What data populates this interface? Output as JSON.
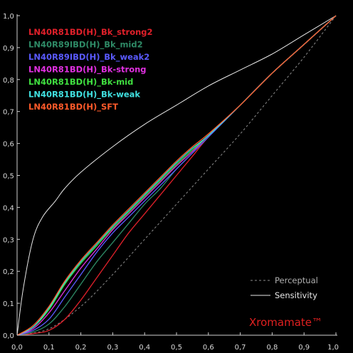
{
  "chart_data": {
    "type": "line",
    "title": "",
    "xlabel": "",
    "ylabel": "",
    "xlim": [
      0,
      1
    ],
    "ylim": [
      0,
      1
    ],
    "grid": false,
    "legend_position": "top-left",
    "x_ticks": [
      "0,0",
      "0,1",
      "0,2",
      "0,3",
      "0,4",
      "0,5",
      "0,6",
      "0,7",
      "0,8",
      "0,9",
      "1,0"
    ],
    "y_ticks": [
      "0,0",
      "0,1",
      "0,2",
      "0,3",
      "0,4",
      "0,5",
      "0,6",
      "0,7",
      "0,8",
      "0,9",
      "1,0"
    ],
    "series": [
      {
        "name": "LN40R81BD(H)_Bk_strong2",
        "color": "#e0202a",
        "points": [
          [
            0,
            0
          ],
          [
            0.05,
            0.005
          ],
          [
            0.1,
            0.015
          ],
          [
            0.15,
            0.05
          ],
          [
            0.2,
            0.11
          ],
          [
            0.25,
            0.18
          ],
          [
            0.3,
            0.25
          ],
          [
            0.35,
            0.32
          ],
          [
            0.4,
            0.38
          ],
          [
            0.45,
            0.44
          ],
          [
            0.5,
            0.5
          ],
          [
            0.55,
            0.56
          ],
          [
            0.6,
            0.62
          ],
          [
            0.7,
            0.72
          ],
          [
            0.8,
            0.82
          ],
          [
            0.9,
            0.91
          ],
          [
            1,
            1
          ]
        ]
      },
      {
        "name": "LN40R89IBD(H)_Bk_mid2",
        "color": "#2e8a66",
        "points": [
          [
            0,
            0
          ],
          [
            0.05,
            0.01
          ],
          [
            0.1,
            0.035
          ],
          [
            0.15,
            0.09
          ],
          [
            0.2,
            0.16
          ],
          [
            0.25,
            0.23
          ],
          [
            0.3,
            0.29
          ],
          [
            0.35,
            0.35
          ],
          [
            0.4,
            0.41
          ],
          [
            0.45,
            0.46
          ],
          [
            0.5,
            0.52
          ],
          [
            0.55,
            0.57
          ],
          [
            0.6,
            0.62
          ],
          [
            0.7,
            0.72
          ],
          [
            0.8,
            0.82
          ],
          [
            0.9,
            0.91
          ],
          [
            1,
            1
          ]
        ]
      },
      {
        "name": "LN40R89IBD(H)_Bk_weak2",
        "color": "#5a5aff",
        "points": [
          [
            0,
            0
          ],
          [
            0.05,
            0.015
          ],
          [
            0.1,
            0.05
          ],
          [
            0.15,
            0.12
          ],
          [
            0.2,
            0.19
          ],
          [
            0.25,
            0.26
          ],
          [
            0.3,
            0.32
          ],
          [
            0.35,
            0.37
          ],
          [
            0.4,
            0.42
          ],
          [
            0.45,
            0.47
          ],
          [
            0.5,
            0.52
          ],
          [
            0.55,
            0.57
          ],
          [
            0.6,
            0.62
          ],
          [
            0.7,
            0.72
          ],
          [
            0.8,
            0.82
          ],
          [
            0.9,
            0.91
          ],
          [
            1,
            1
          ]
        ]
      },
      {
        "name": "LN40R81BD(H)_Bk-strong",
        "color": "#e030e0",
        "points": [
          [
            0,
            0
          ],
          [
            0.05,
            0.02
          ],
          [
            0.1,
            0.07
          ],
          [
            0.15,
            0.14
          ],
          [
            0.2,
            0.21
          ],
          [
            0.25,
            0.27
          ],
          [
            0.3,
            0.33
          ],
          [
            0.35,
            0.38
          ],
          [
            0.4,
            0.43
          ],
          [
            0.45,
            0.48
          ],
          [
            0.5,
            0.53
          ],
          [
            0.55,
            0.575
          ],
          [
            0.6,
            0.625
          ],
          [
            0.7,
            0.72
          ],
          [
            0.8,
            0.82
          ],
          [
            0.9,
            0.91
          ],
          [
            1,
            1
          ]
        ]
      },
      {
        "name": "LN40R81BD(H)_Bk-mid",
        "color": "#40e040",
        "points": [
          [
            0,
            0
          ],
          [
            0.05,
            0.025
          ],
          [
            0.1,
            0.08
          ],
          [
            0.15,
            0.16
          ],
          [
            0.2,
            0.225
          ],
          [
            0.25,
            0.28
          ],
          [
            0.3,
            0.335
          ],
          [
            0.35,
            0.385
          ],
          [
            0.4,
            0.435
          ],
          [
            0.45,
            0.485
          ],
          [
            0.5,
            0.535
          ],
          [
            0.55,
            0.58
          ],
          [
            0.6,
            0.625
          ],
          [
            0.7,
            0.72
          ],
          [
            0.8,
            0.82
          ],
          [
            0.9,
            0.91
          ],
          [
            1,
            1
          ]
        ]
      },
      {
        "name": "LN40R81BD(H)_Bk-weak",
        "color": "#40e0e0",
        "points": [
          [
            0,
            0
          ],
          [
            0.05,
            0.025
          ],
          [
            0.1,
            0.085
          ],
          [
            0.15,
            0.165
          ],
          [
            0.2,
            0.23
          ],
          [
            0.25,
            0.285
          ],
          [
            0.3,
            0.34
          ],
          [
            0.35,
            0.39
          ],
          [
            0.4,
            0.44
          ],
          [
            0.45,
            0.49
          ],
          [
            0.5,
            0.54
          ],
          [
            0.55,
            0.585
          ],
          [
            0.6,
            0.625
          ],
          [
            0.7,
            0.72
          ],
          [
            0.8,
            0.82
          ],
          [
            0.9,
            0.91
          ],
          [
            1,
            1
          ]
        ]
      },
      {
        "name": "LN40R81BD(H)_SFT",
        "color": "#ff5a2a",
        "points": [
          [
            0,
            0
          ],
          [
            0.05,
            0.03
          ],
          [
            0.1,
            0.09
          ],
          [
            0.15,
            0.17
          ],
          [
            0.2,
            0.235
          ],
          [
            0.25,
            0.29
          ],
          [
            0.3,
            0.345
          ],
          [
            0.35,
            0.395
          ],
          [
            0.4,
            0.445
          ],
          [
            0.45,
            0.495
          ],
          [
            0.5,
            0.545
          ],
          [
            0.55,
            0.59
          ],
          [
            0.6,
            0.63
          ],
          [
            0.7,
            0.72
          ],
          [
            0.8,
            0.82
          ],
          [
            0.9,
            0.91
          ],
          [
            1,
            1
          ]
        ]
      }
    ],
    "reference_lines": [
      {
        "name": "Perceptual",
        "color": "#8c8c8c",
        "dashed": true,
        "points": [
          [
            0,
            0
          ],
          [
            0.1,
            0.02
          ],
          [
            0.2,
            0.09
          ],
          [
            0.3,
            0.19
          ],
          [
            0.4,
            0.3
          ],
          [
            0.5,
            0.41
          ],
          [
            0.6,
            0.52
          ],
          [
            0.7,
            0.63
          ],
          [
            0.8,
            0.75
          ],
          [
            0.9,
            0.87
          ],
          [
            1,
            1
          ]
        ]
      },
      {
        "name": "Sensitivity",
        "color": "#e8e8e8",
        "dashed": false,
        "points": [
          [
            0,
            0
          ],
          [
            0.02,
            0.15
          ],
          [
            0.05,
            0.3
          ],
          [
            0.08,
            0.37
          ],
          [
            0.12,
            0.42
          ],
          [
            0.15,
            0.46
          ],
          [
            0.2,
            0.51
          ],
          [
            0.3,
            0.59
          ],
          [
            0.4,
            0.66
          ],
          [
            0.5,
            0.72
          ],
          [
            0.6,
            0.78
          ],
          [
            0.7,
            0.83
          ],
          [
            0.8,
            0.88
          ],
          [
            0.9,
            0.94
          ],
          [
            1,
            1
          ]
        ]
      }
    ],
    "watermark": "Xromamate™",
    "watermark_color": "#e02020"
  }
}
